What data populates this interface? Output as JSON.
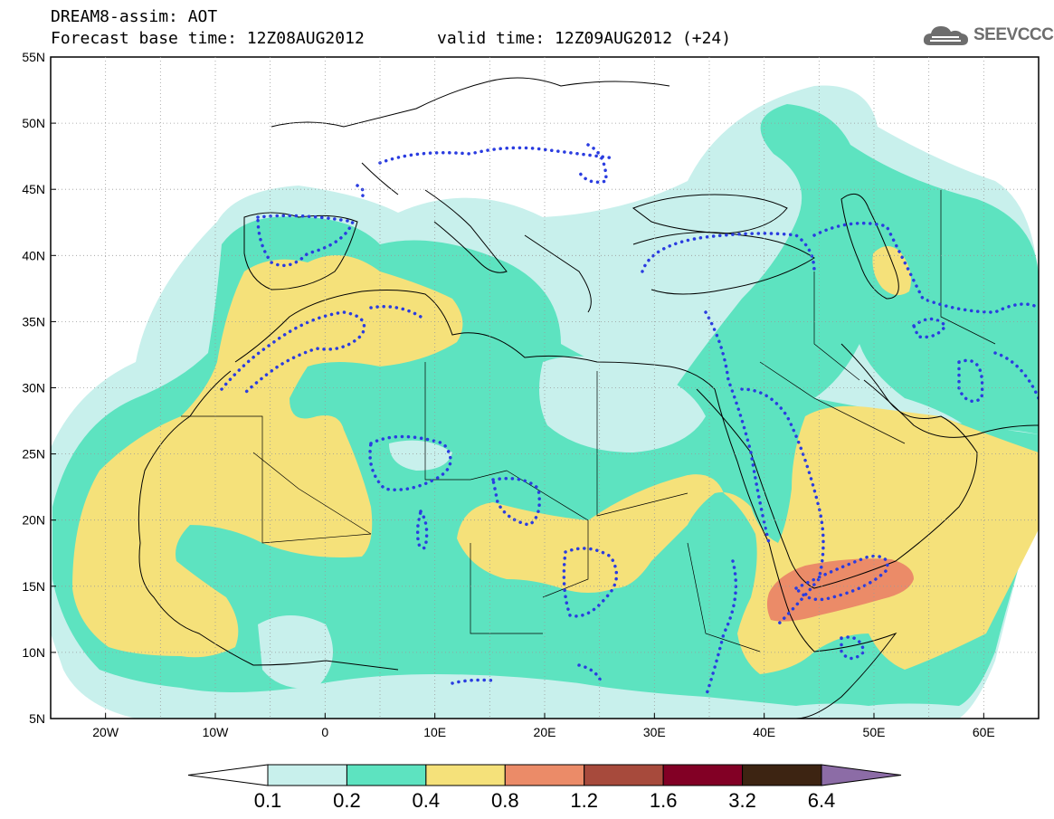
{
  "header": {
    "title_line1": "DREAM8-assim: AOT",
    "title_line2": "Forecast base time: 12Z08AUG2012",
    "valid_time": "valid time: 12Z09AUG2012 (+24)",
    "logo_text": "SEEVCCC"
  },
  "map": {
    "lat_labels": [
      "55N",
      "50N",
      "45N",
      "40N",
      "35N",
      "30N",
      "25N",
      "20N",
      "15N",
      "10N",
      "5N"
    ],
    "lon_labels": [
      "20W",
      "10W",
      "0",
      "10E",
      "20E",
      "30E",
      "40E",
      "50E",
      "60E"
    ]
  },
  "legend": {
    "labels": [
      "0.1",
      "0.2",
      "0.4",
      "0.8",
      "1.2",
      "1.6",
      "3.2",
      "6.4"
    ],
    "colors": {
      "c1": "#c8f0ec",
      "c2": "#5de3c0",
      "c3": "#f5e17a",
      "c4": "#eb8b68",
      "c5": "#a74a3c",
      "c6": "#820025",
      "c7": "#3d2412",
      "c8": "#8c6ca6"
    }
  },
  "colors": {
    "sea": "#ffffff",
    "contour_dots": "#2a3ce0",
    "borders": "#000000"
  }
}
